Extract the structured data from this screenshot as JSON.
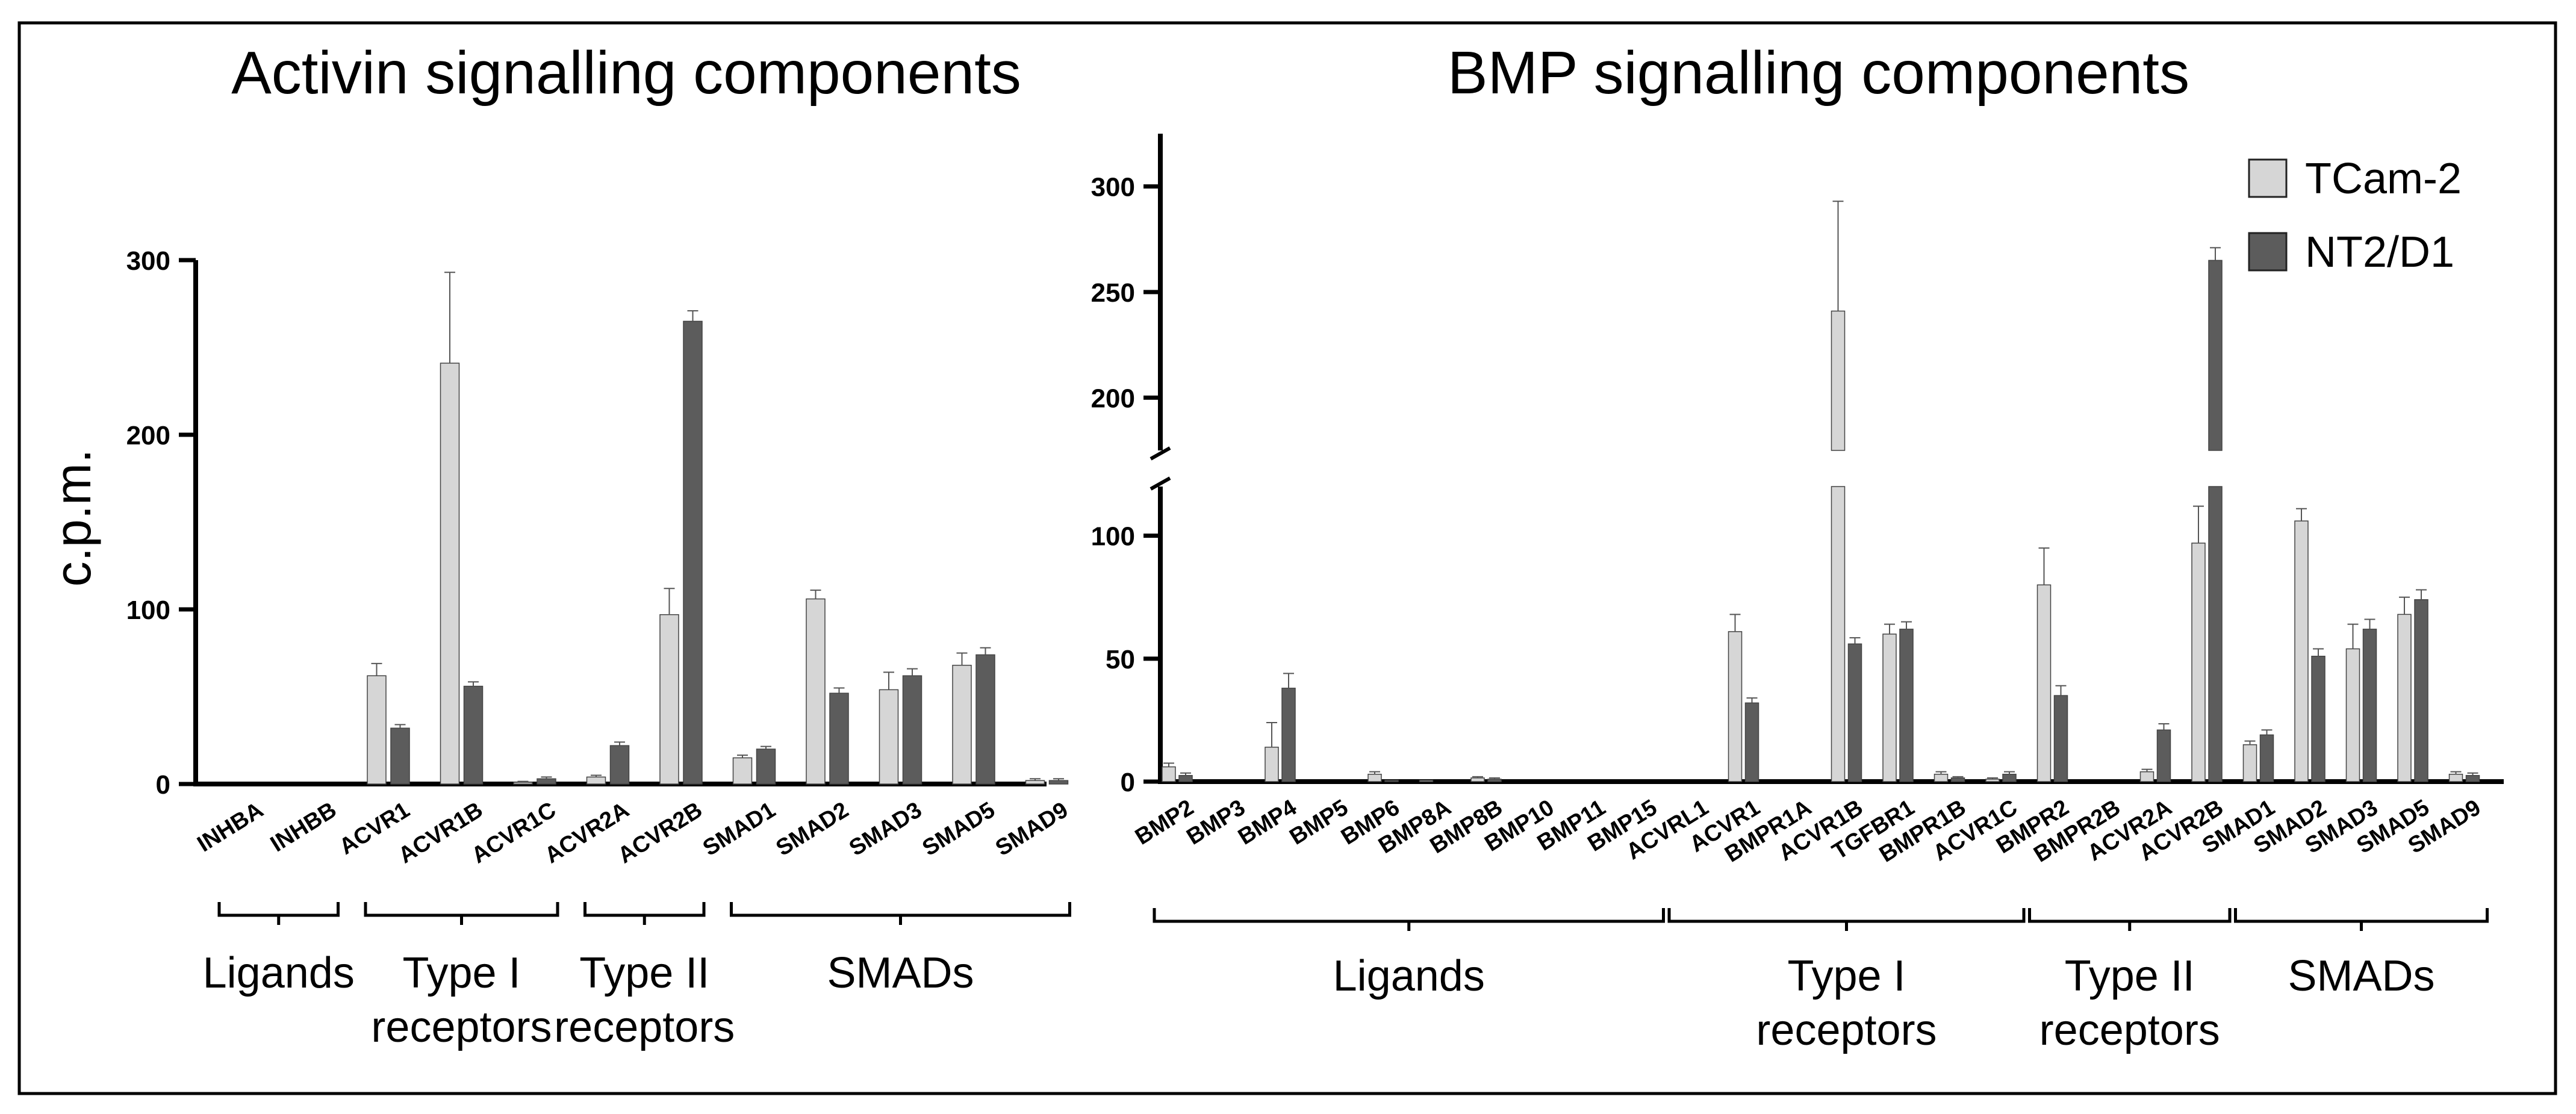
{
  "figure": {
    "colors": {
      "tcam": "#d6d6d6",
      "nt2": "#5c5c5c",
      "axis": "#000000",
      "frame": "#000000"
    }
  },
  "chart_data": [
    {
      "type": "bar",
      "title": "Activin signalling components",
      "xlabel": "",
      "ylabel": "c.p.m.",
      "ylim": [
        0,
        300
      ],
      "yticks": [
        0,
        100,
        200,
        300
      ],
      "categories": [
        "INHBA",
        "INHBB",
        "ACVR1",
        "ACVR1B",
        "ACVR1C",
        "ACVR2A",
        "ACVR2B",
        "SMAD1",
        "SMAD2",
        "SMAD3",
        "SMAD5",
        "SMAD9"
      ],
      "series": [
        {
          "name": "TCam-2",
          "values": [
            0,
            0,
            62,
            241,
            1,
            4,
            97,
            15,
            106,
            54,
            68,
            2
          ],
          "errors": [
            0,
            0,
            7,
            52,
            0.5,
            1,
            15,
            1.5,
            5,
            10,
            7,
            1
          ]
        },
        {
          "name": "NT2/D1",
          "values": [
            0,
            0,
            32,
            56,
            3,
            22,
            265,
            20,
            52,
            62,
            74,
            2
          ],
          "errors": [
            0,
            0,
            2,
            2.5,
            1,
            2,
            6,
            1.5,
            3,
            4,
            4,
            1
          ]
        }
      ],
      "groups": [
        {
          "lines": [
            "Ligands"
          ],
          "from": 0,
          "to": 1
        },
        {
          "lines": [
            "Type I",
            "receptors"
          ],
          "from": 2,
          "to": 4
        },
        {
          "lines": [
            "Type II",
            "receptors"
          ],
          "from": 5,
          "to": 6
        },
        {
          "lines": [
            "SMADs"
          ],
          "from": 7,
          "to": 11
        }
      ]
    },
    {
      "type": "bar",
      "title": "BMP signalling components",
      "xlabel": "",
      "ylabel": "",
      "axis_break": {
        "lower": [
          0,
          120
        ],
        "upper": [
          175,
          325
        ]
      },
      "yticks": [
        0,
        50,
        100,
        200,
        250,
        300
      ],
      "legend": [
        "TCam-2",
        "NT2/D1"
      ],
      "legend_position": "top-right",
      "categories": [
        "BMP2",
        "BMP3",
        "BMP4",
        "BMP5",
        "BMP6",
        "BMP8A",
        "BMP8B",
        "BMP10",
        "BMP11",
        "BMP15",
        "ACVRL1",
        "ACVR1",
        "BMPR1A",
        "ACVR1B",
        "TGFBR1",
        "BMPR1B",
        "ACVR1C",
        "BMPR2",
        "BMPR2B",
        "ACVR2A",
        "ACVR2B",
        "SMAD1",
        "SMAD2",
        "SMAD3",
        "SMAD5",
        "SMAD9"
      ],
      "series": [
        {
          "name": "TCam-2",
          "values": [
            6,
            0,
            14,
            0,
            3,
            0.5,
            1.5,
            0,
            0,
            0,
            0,
            61,
            0,
            241,
            60,
            3,
            1,
            80,
            0,
            4,
            97,
            15,
            106,
            54,
            68,
            3
          ],
          "errors": [
            1.5,
            0,
            10,
            0,
            1,
            0,
            0.5,
            0,
            0,
            0,
            0,
            7,
            0,
            52,
            4,
            1,
            0.5,
            15,
            0,
            1,
            15,
            1.5,
            5,
            10,
            7,
            1
          ]
        },
        {
          "name": "NT2/D1",
          "values": [
            2.5,
            0,
            38,
            0,
            0.5,
            0,
            1,
            0,
            0,
            0,
            0,
            32,
            0,
            56,
            62,
            1.5,
            3,
            35,
            0,
            21,
            265,
            19,
            51,
            62,
            74,
            2.5
          ],
          "errors": [
            1,
            0,
            6,
            0,
            0,
            0,
            0.5,
            0,
            0,
            0,
            0,
            2,
            0,
            2.5,
            3,
            0.5,
            1,
            4,
            0,
            2.5,
            6,
            2,
            3,
            4,
            4,
            1
          ]
        }
      ],
      "groups": [
        {
          "lines": [
            "Ligands"
          ],
          "from": 0,
          "to": 9
        },
        {
          "lines": [
            "Type I",
            "receptors"
          ],
          "from": 10,
          "to": 16
        },
        {
          "lines": [
            "Type II",
            "receptors"
          ],
          "from": 17,
          "to": 20
        },
        {
          "lines": [
            "SMADs"
          ],
          "from": 21,
          "to": 25
        }
      ]
    }
  ]
}
